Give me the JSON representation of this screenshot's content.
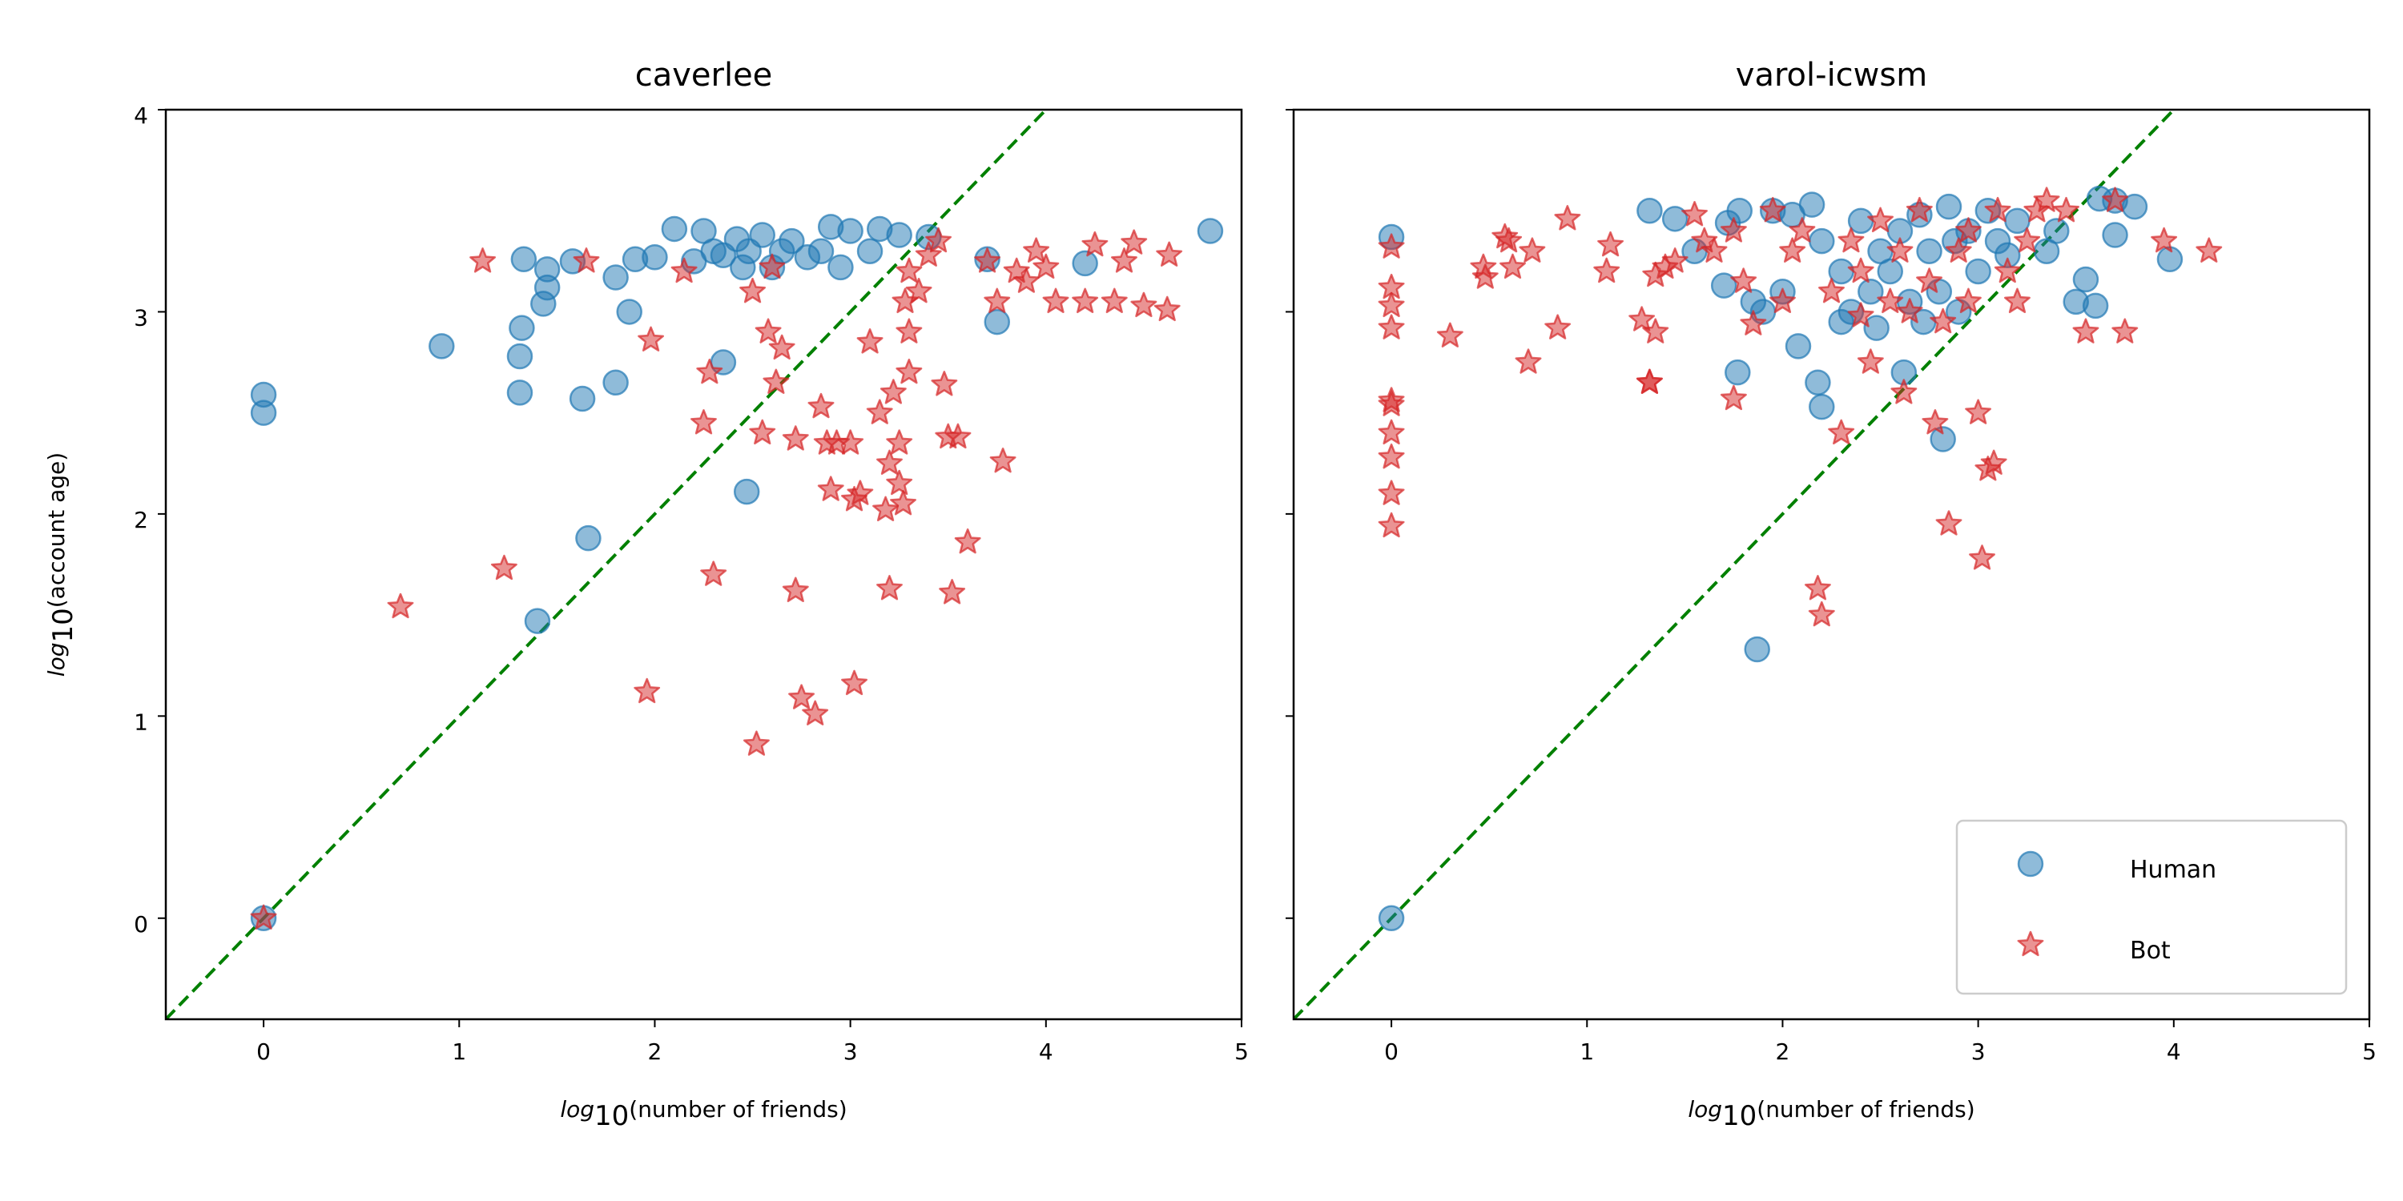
{
  "colors": {
    "human": "#1f77b4",
    "bot": "#d62728",
    "diagonal": "#008000"
  },
  "x_label": {
    "prefix": "log",
    "sub": "10",
    "rest": "(number of friends)"
  },
  "y_label": {
    "prefix": "log",
    "sub": "10",
    "rest": "(account age)"
  },
  "legend": {
    "human": "Human",
    "bot": "Bot",
    "placement": "lower-right of right panel"
  },
  "chart_data": [
    {
      "type": "scatter",
      "title": "caverlee",
      "xlim": [
        -0.5,
        5
      ],
      "ylim": [
        -0.5,
        4
      ],
      "xticks": [
        0,
        1,
        2,
        3,
        4,
        5
      ],
      "yticks": [
        0,
        1,
        2,
        3,
        4
      ],
      "show_yticklabels": true,
      "grid": false,
      "reference_line": {
        "style": "dashed",
        "slope": 1,
        "intercept": 0
      },
      "series": [
        {
          "name": "Human",
          "marker": "circle",
          "points": [
            [
              0,
              2.59
            ],
            [
              0,
              2.5
            ],
            [
              0.91,
              2.83
            ],
            [
              1.33,
              3.26
            ],
            [
              1.32,
              2.92
            ],
            [
              1.31,
              2.78
            ],
            [
              1.31,
              2.6
            ],
            [
              1.45,
              3.21
            ],
            [
              1.45,
              3.12
            ],
            [
              1.43,
              3.04
            ],
            [
              1.58,
              3.25
            ],
            [
              1.63,
              2.57
            ],
            [
              1.66,
              1.88
            ],
            [
              1.4,
              1.47
            ],
            [
              1.8,
              2.65
            ],
            [
              1.8,
              3.17
            ],
            [
              1.87,
              3.0
            ],
            [
              1.9,
              3.26
            ],
            [
              2.0,
              3.27
            ],
            [
              2.1,
              3.41
            ],
            [
              2.2,
              3.25
            ],
            [
              2.25,
              3.4
            ],
            [
              2.3,
              3.3
            ],
            [
              2.35,
              3.28
            ],
            [
              2.42,
              3.36
            ],
            [
              2.45,
              3.22
            ],
            [
              2.48,
              3.3
            ],
            [
              2.55,
              3.38
            ],
            [
              2.6,
              3.22
            ],
            [
              2.65,
              3.3
            ],
            [
              2.7,
              3.35
            ],
            [
              2.78,
              3.27
            ],
            [
              2.85,
              3.3
            ],
            [
              2.9,
              3.42
            ],
            [
              2.95,
              3.22
            ],
            [
              3.0,
              3.4
            ],
            [
              3.1,
              3.3
            ],
            [
              3.15,
              3.41
            ],
            [
              3.25,
              3.38
            ],
            [
              3.4,
              3.37
            ],
            [
              2.35,
              2.75
            ],
            [
              2.47,
              2.11
            ],
            [
              3.75,
              2.95
            ],
            [
              3.7,
              3.26
            ],
            [
              4.2,
              3.24
            ],
            [
              4.84,
              3.4
            ],
            [
              0,
              0
            ]
          ]
        },
        {
          "name": "Bot",
          "marker": "star",
          "points": [
            [
              0.7,
              1.54
            ],
            [
              1.12,
              3.25
            ],
            [
              1.23,
              1.73
            ],
            [
              1.65,
              3.25
            ],
            [
              1.98,
              2.86
            ],
            [
              1.96,
              1.12
            ],
            [
              2.15,
              3.2
            ],
            [
              2.25,
              2.45
            ],
            [
              2.28,
              2.7
            ],
            [
              2.3,
              1.7
            ],
            [
              2.5,
              3.1
            ],
            [
              2.52,
              0.86
            ],
            [
              2.55,
              2.4
            ],
            [
              2.58,
              2.9
            ],
            [
              2.62,
              2.65
            ],
            [
              2.6,
              3.22
            ],
            [
              2.65,
              2.82
            ],
            [
              2.72,
              1.62
            ],
            [
              2.72,
              2.37
            ],
            [
              2.75,
              1.09
            ],
            [
              2.82,
              1.01
            ],
            [
              2.85,
              2.53
            ],
            [
              2.88,
              2.35
            ],
            [
              2.9,
              2.12
            ],
            [
              2.93,
              2.35
            ],
            [
              3.0,
              2.35
            ],
            [
              3.02,
              2.07
            ],
            [
              3.02,
              1.16
            ],
            [
              3.05,
              2.1
            ],
            [
              3.1,
              2.85
            ],
            [
              3.15,
              2.5
            ],
            [
              3.18,
              2.02
            ],
            [
              3.2,
              1.63
            ],
            [
              3.2,
              2.25
            ],
            [
              3.22,
              2.6
            ],
            [
              3.25,
              2.15
            ],
            [
              3.25,
              2.35
            ],
            [
              3.27,
              2.05
            ],
            [
              3.3,
              2.7
            ],
            [
              3.3,
              2.9
            ],
            [
              3.28,
              3.05
            ],
            [
              3.3,
              3.2
            ],
            [
              3.35,
              3.1
            ],
            [
              3.4,
              3.28
            ],
            [
              3.45,
              3.35
            ],
            [
              3.48,
              2.64
            ],
            [
              3.5,
              2.38
            ],
            [
              3.52,
              1.61
            ],
            [
              3.55,
              2.38
            ],
            [
              3.6,
              1.86
            ],
            [
              3.7,
              3.25
            ],
            [
              3.75,
              3.05
            ],
            [
              3.78,
              2.26
            ],
            [
              3.85,
              3.2
            ],
            [
              3.9,
              3.15
            ],
            [
              3.95,
              3.3
            ],
            [
              4.0,
              3.22
            ],
            [
              4.05,
              3.05
            ],
            [
              4.2,
              3.05
            ],
            [
              4.25,
              3.33
            ],
            [
              4.35,
              3.05
            ],
            [
              4.4,
              3.25
            ],
            [
              4.45,
              3.34
            ],
            [
              4.5,
              3.03
            ],
            [
              4.62,
              3.01
            ],
            [
              4.63,
              3.28
            ],
            [
              0,
              0
            ]
          ]
        }
      ]
    },
    {
      "type": "scatter",
      "title": "varol-icwsm",
      "xlim": [
        -0.5,
        5
      ],
      "ylim": [
        -0.5,
        4
      ],
      "xticks": [
        0,
        1,
        2,
        3,
        4,
        5
      ],
      "yticks": [
        0,
        1,
        2,
        3,
        4
      ],
      "show_yticklabels": false,
      "grid": false,
      "reference_line": {
        "style": "dashed",
        "slope": 1,
        "intercept": 0
      },
      "series": [
        {
          "name": "Human",
          "marker": "circle",
          "points": [
            [
              0,
              3.37
            ],
            [
              0,
              0
            ],
            [
              1.32,
              3.5
            ],
            [
              1.45,
              3.46
            ],
            [
              1.55,
              3.3
            ],
            [
              1.72,
              3.44
            ],
            [
              1.7,
              3.13
            ],
            [
              1.78,
              3.5
            ],
            [
              1.85,
              3.05
            ],
            [
              1.9,
              3.0
            ],
            [
              1.95,
              3.5
            ],
            [
              2.0,
              3.1
            ],
            [
              2.05,
              3.48
            ],
            [
              2.08,
              2.83
            ],
            [
              2.15,
              3.53
            ],
            [
              2.18,
              2.65
            ],
            [
              2.2,
              2.53
            ],
            [
              2.2,
              3.35
            ],
            [
              2.3,
              3.2
            ],
            [
              2.35,
              3.0
            ],
            [
              2.4,
              3.45
            ],
            [
              2.45,
              3.1
            ],
            [
              2.48,
              2.92
            ],
            [
              2.5,
              3.3
            ],
            [
              2.55,
              3.2
            ],
            [
              2.6,
              3.4
            ],
            [
              2.62,
              2.7
            ],
            [
              2.65,
              3.05
            ],
            [
              2.7,
              3.48
            ],
            [
              2.72,
              2.95
            ],
            [
              2.75,
              3.3
            ],
            [
              2.8,
              3.1
            ],
            [
              2.85,
              3.52
            ],
            [
              2.88,
              3.35
            ],
            [
              2.9,
              3.0
            ],
            [
              2.95,
              3.4
            ],
            [
              3.0,
              3.2
            ],
            [
              3.05,
              3.5
            ],
            [
              3.1,
              3.35
            ],
            [
              3.15,
              3.28
            ],
            [
              3.2,
              3.45
            ],
            [
              3.35,
              3.3
            ],
            [
              3.4,
              3.4
            ],
            [
              3.5,
              3.05
            ],
            [
              3.55,
              3.16
            ],
            [
              3.6,
              3.03
            ],
            [
              3.62,
              3.56
            ],
            [
              3.7,
              3.55
            ],
            [
              3.7,
              3.38
            ],
            [
              3.8,
              3.52
            ],
            [
              3.98,
              3.26
            ],
            [
              1.77,
              2.7
            ],
            [
              2.82,
              2.37
            ],
            [
              1.87,
              1.33
            ],
            [
              2.3,
              2.95
            ]
          ]
        },
        {
          "name": "Bot",
          "marker": "star",
          "points": [
            [
              0,
              3.32
            ],
            [
              0,
              3.12
            ],
            [
              0,
              3.03
            ],
            [
              0,
              2.92
            ],
            [
              0,
              2.56
            ],
            [
              0,
              2.54
            ],
            [
              0,
              2.4
            ],
            [
              0,
              2.28
            ],
            [
              0,
              2.1
            ],
            [
              0,
              1.94
            ],
            [
              0.3,
              2.88
            ],
            [
              0.47,
              3.22
            ],
            [
              0.48,
              3.17
            ],
            [
              0.58,
              3.37
            ],
            [
              0.6,
              3.35
            ],
            [
              0.62,
              3.22
            ],
            [
              0.7,
              2.75
            ],
            [
              0.72,
              3.3
            ],
            [
              0.85,
              2.92
            ],
            [
              0.9,
              3.46
            ],
            [
              1.1,
              3.2
            ],
            [
              1.12,
              3.33
            ],
            [
              1.28,
              2.96
            ],
            [
              1.32,
              2.65
            ],
            [
              1.35,
              2.9
            ],
            [
              1.35,
              3.18
            ],
            [
              1.4,
              3.22
            ],
            [
              1.45,
              3.25
            ],
            [
              1.55,
              3.48
            ],
            [
              1.6,
              3.35
            ],
            [
              1.65,
              3.3
            ],
            [
              1.75,
              3.4
            ],
            [
              1.75,
              2.57
            ],
            [
              1.8,
              3.15
            ],
            [
              1.85,
              2.94
            ],
            [
              1.95,
              3.5
            ],
            [
              2.0,
              3.05
            ],
            [
              2.05,
              3.3
            ],
            [
              2.1,
              3.4
            ],
            [
              2.18,
              1.63
            ],
            [
              2.2,
              1.5
            ],
            [
              2.25,
              3.1
            ],
            [
              2.3,
              2.4
            ],
            [
              2.35,
              3.35
            ],
            [
              2.4,
              3.2
            ],
            [
              2.45,
              2.75
            ],
            [
              2.5,
              3.45
            ],
            [
              2.55,
              3.05
            ],
            [
              2.6,
              3.3
            ],
            [
              2.62,
              2.6
            ],
            [
              2.7,
              3.5
            ],
            [
              2.75,
              3.15
            ],
            [
              2.78,
              2.45
            ],
            [
              2.82,
              2.95
            ],
            [
              2.85,
              1.95
            ],
            [
              2.9,
              3.3
            ],
            [
              2.95,
              3.4
            ],
            [
              3.0,
              2.5
            ],
            [
              3.02,
              1.78
            ],
            [
              3.05,
              2.22
            ],
            [
              3.08,
              2.25
            ],
            [
              3.1,
              3.5
            ],
            [
              3.15,
              3.2
            ],
            [
              3.2,
              3.05
            ],
            [
              3.25,
              3.35
            ],
            [
              3.3,
              3.5
            ],
            [
              3.35,
              3.55
            ],
            [
              3.45,
              3.5
            ],
            [
              3.55,
              2.9
            ],
            [
              3.7,
              3.55
            ],
            [
              3.75,
              2.9
            ],
            [
              3.95,
              3.35
            ],
            [
              4.18,
              3.3
            ],
            [
              1.32,
              2.65
            ],
            [
              2.4,
              2.98
            ],
            [
              2.65,
              3.0
            ],
            [
              2.95,
              3.05
            ]
          ]
        }
      ]
    }
  ]
}
